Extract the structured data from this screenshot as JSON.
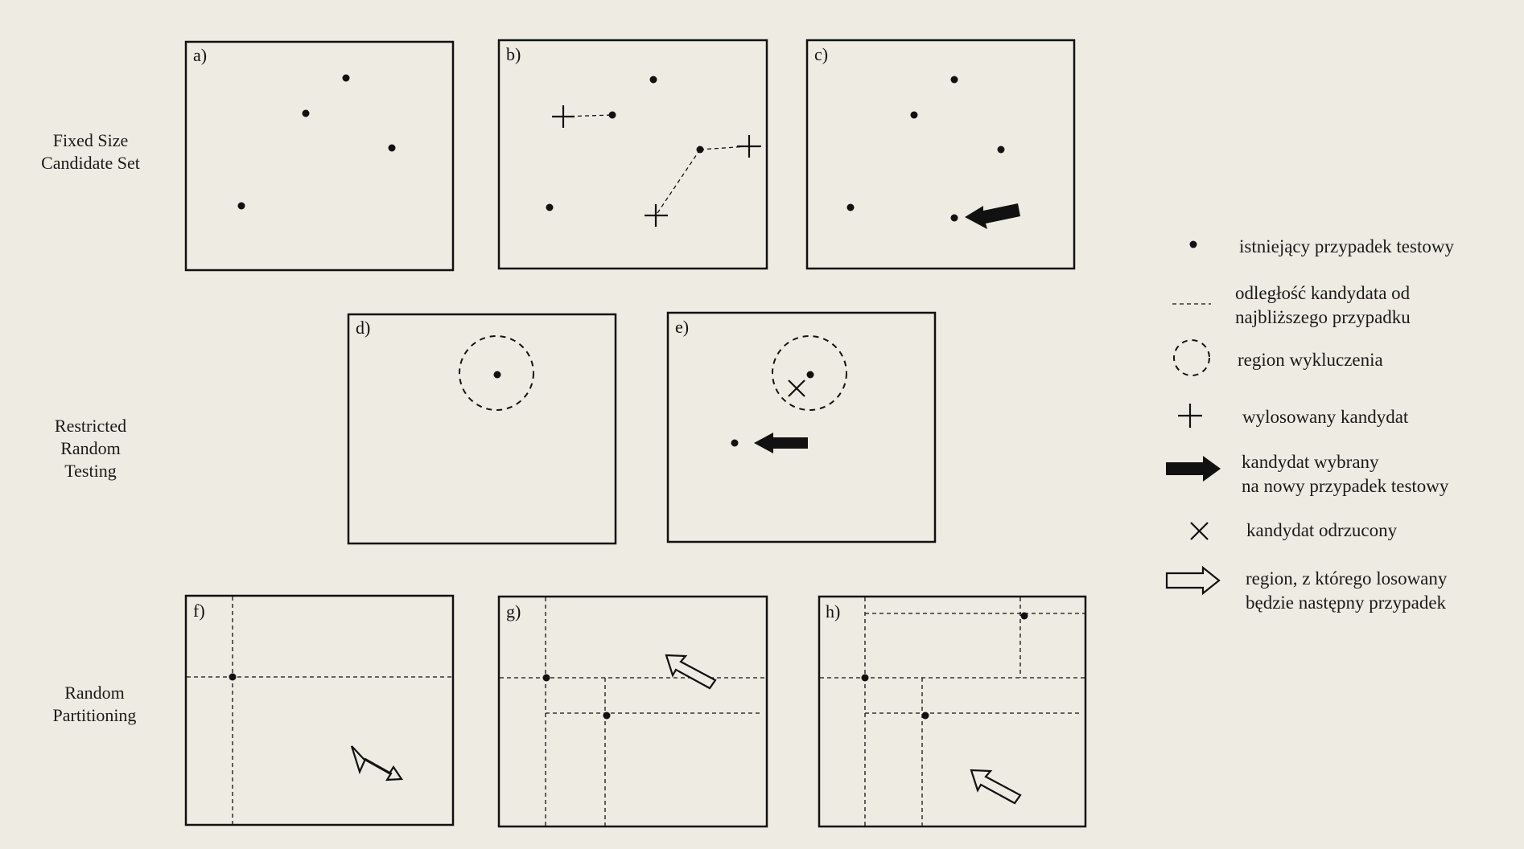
{
  "rows": [
    {
      "lines": [
        "Fixed Size",
        "Candidate Set"
      ]
    },
    {
      "lines": [
        "Restricted",
        "Random",
        "Testing"
      ]
    },
    {
      "lines": [
        "Random",
        "Partitioning"
      ]
    }
  ],
  "panels": {
    "a": {
      "label": "a)"
    },
    "b": {
      "label": "b)"
    },
    "c": {
      "label": "c)"
    },
    "d": {
      "label": "d)"
    },
    "e": {
      "label": "e)"
    },
    "f": {
      "label": "f)"
    },
    "g": {
      "label": "g)"
    },
    "h": {
      "label": "h)"
    }
  },
  "legend": [
    {
      "icon": "dot-icon",
      "lines": [
        "istniejący przypadek testowy"
      ]
    },
    {
      "icon": "dashed-line-icon",
      "lines": [
        "odległość kandydata od",
        "najbliższego przypadku"
      ]
    },
    {
      "icon": "dashed-circle-icon",
      "lines": [
        "region wykluczenia"
      ]
    },
    {
      "icon": "plus-icon",
      "lines": [
        "wylosowany kandydat"
      ]
    },
    {
      "icon": "filled-arrow-icon",
      "lines": [
        "kandydat wybrany",
        "na nowy przypadek testowy"
      ]
    },
    {
      "icon": "x-mark-icon",
      "lines": [
        "kandydat odrzucony"
      ]
    },
    {
      "icon": "hollow-arrow-icon",
      "lines": [
        "region, z którego losowany",
        "będzie następny przypadek"
      ]
    }
  ],
  "colors": {
    "background": "#eeebe3",
    "ink": "#111111"
  }
}
